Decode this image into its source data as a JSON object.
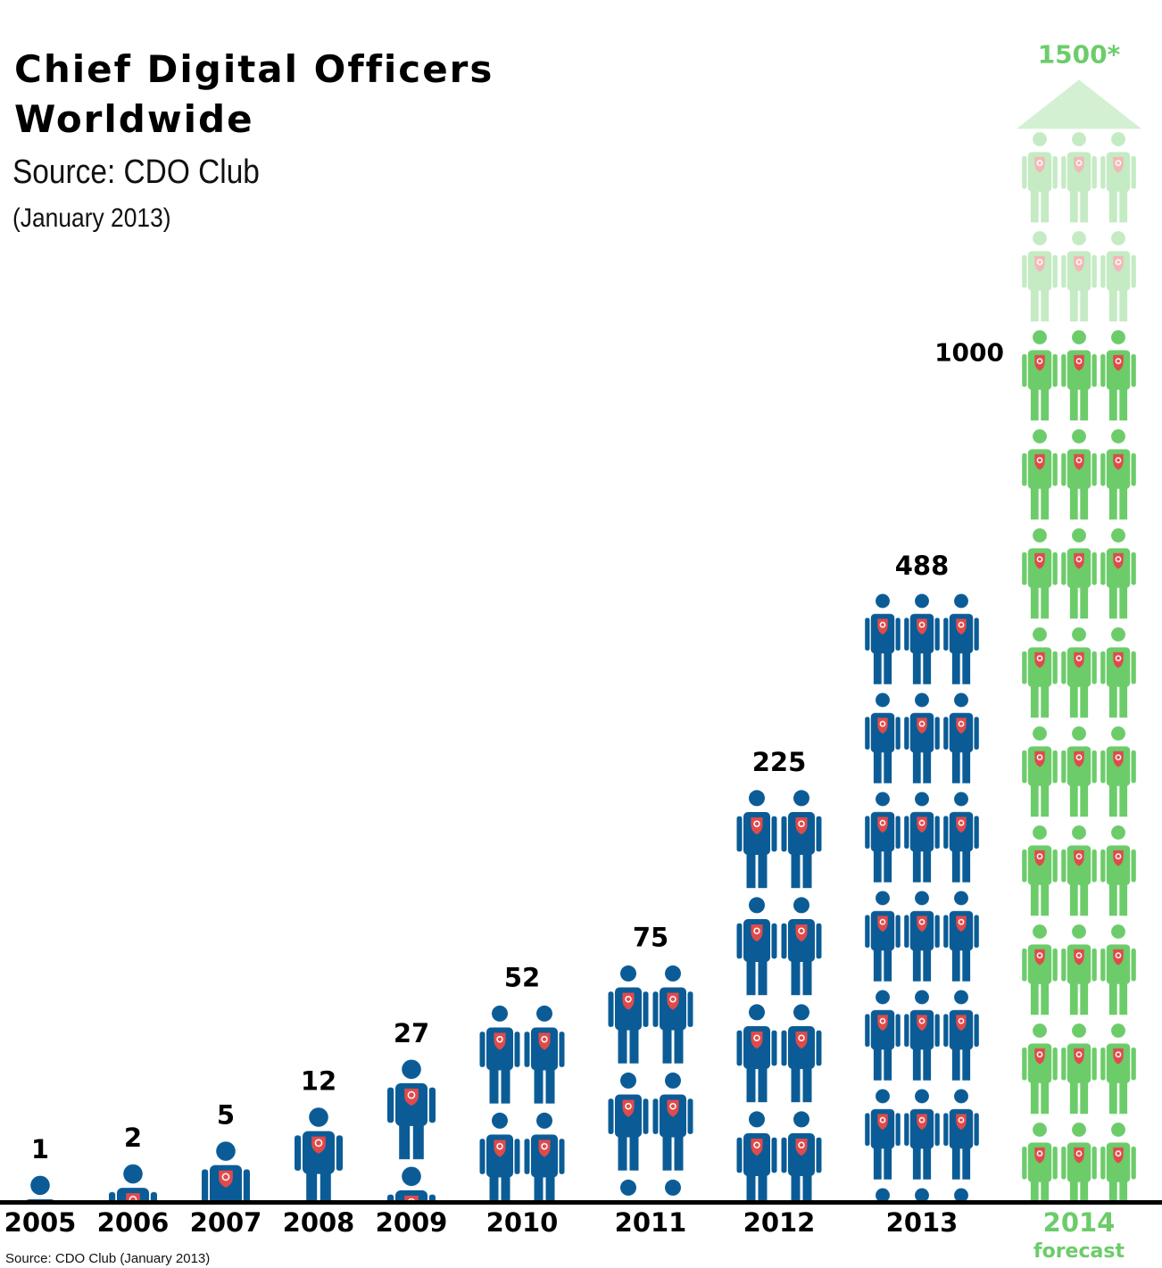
{
  "chart_data": {
    "type": "bar",
    "title": "Chief Digital Officers Worldwide",
    "subtitle": "Source: CDO Club",
    "date": "(January 2013)",
    "source": "Source: CDO Club (January 2013)",
    "categories": [
      "2005",
      "2006",
      "2007",
      "2008",
      "2009",
      "2010",
      "2011",
      "2012",
      "2013",
      "2014"
    ],
    "values": [
      1,
      2,
      5,
      12,
      27,
      52,
      75,
      225,
      488,
      1000
    ],
    "color": "#0b5c96",
    "highlight_color": "#6ccc6a",
    "forecast": {
      "value": 1500,
      "label": "1500*",
      "note": "forecast"
    }
  }
}
